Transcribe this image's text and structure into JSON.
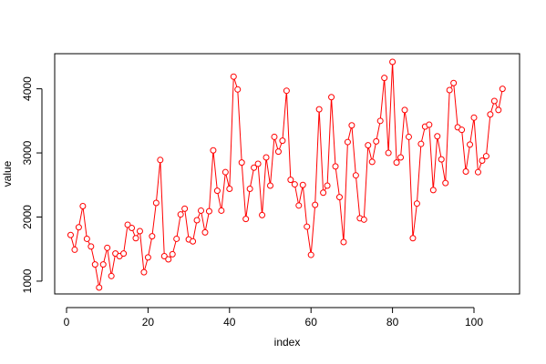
{
  "chart_data": {
    "type": "line",
    "title": "",
    "xlabel": "index",
    "ylabel": "value",
    "xlim": [
      0,
      107
    ],
    "ylim": [
      900,
      4420
    ],
    "x_ticks": [
      0,
      20,
      40,
      60,
      80,
      100
    ],
    "y_ticks": [
      1000,
      2000,
      3000,
      4000
    ],
    "grid": false,
    "legend": "none",
    "series_color": "#ff0000",
    "marker": "open-circle",
    "series": [
      {
        "values": [
          1720,
          1490,
          1840,
          2170,
          1660,
          1540,
          1260,
          900,
          1260,
          1520,
          1080,
          1430,
          1390,
          1430,
          1880,
          1830,
          1670,
          1780,
          1140,
          1370,
          1700,
          2220,
          2890,
          1390,
          1340,
          1420,
          1660,
          2040,
          2130,
          1650,
          1620,
          1950,
          2100,
          1760,
          2090,
          3040,
          2410,
          2100,
          2700,
          2440,
          4190,
          3990,
          2850,
          1970,
          2440,
          2770,
          2830,
          2030,
          2930,
          2490,
          3250,
          3020,
          3190,
          3970,
          2580,
          2510,
          2180,
          2500,
          1850,
          1410,
          2190,
          3680,
          2380,
          2490,
          3870,
          2790,
          2310,
          1610,
          3170,
          3430,
          2650,
          1980,
          1960,
          3120,
          2860,
          3180,
          3500,
          4170,
          3000,
          4420,
          2850,
          2930,
          3670,
          3250,
          1670,
          2210,
          3140,
          3410,
          3440,
          2420,
          3260,
          2900,
          2530,
          3980,
          4090,
          3400,
          3360,
          2710,
          3130,
          3550,
          2700,
          2880,
          2950,
          3600,
          3810,
          3670,
          4000
        ]
      }
    ]
  }
}
